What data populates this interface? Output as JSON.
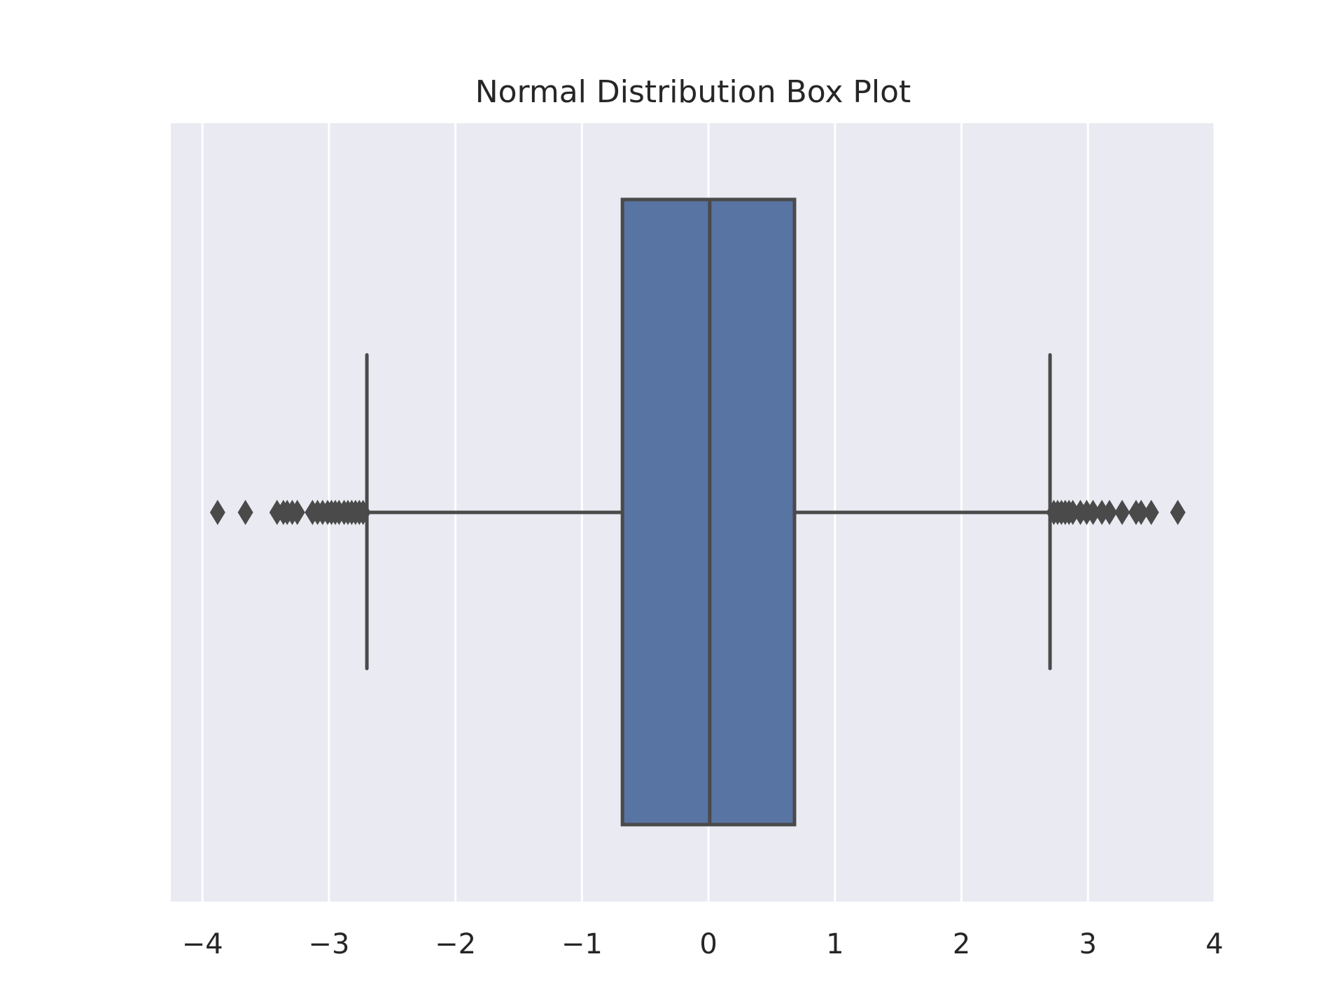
{
  "chart_data": {
    "type": "box",
    "title": "Normal Distribution Box Plot",
    "xlabel": "",
    "ylabel": "",
    "xlim": [
      -4.25,
      4.0
    ],
    "xticks": [
      -4,
      -3,
      -2,
      -1,
      0,
      1,
      2,
      3,
      4
    ],
    "xtick_labels": [
      "−4",
      "−3",
      "−2",
      "−1",
      "0",
      "1",
      "2",
      "3",
      "4"
    ],
    "grid": true,
    "orientation": "horizontal",
    "colors": {
      "box_fill": "#5874a3",
      "line": "#4a4a4a",
      "plot_background": "#eaeaf2",
      "grid": "#ffffff"
    },
    "box": {
      "whisker_low": -2.7,
      "q1": -0.68,
      "median": 0.01,
      "q3": 0.68,
      "whisker_high": 2.7
    },
    "outliers": [
      -3.88,
      -3.66,
      -3.41,
      -3.36,
      -3.33,
      -3.29,
      -3.25,
      -3.13,
      -3.09,
      -3.05,
      -3.01,
      -2.98,
      -2.95,
      -2.92,
      -2.88,
      -2.85,
      -2.82,
      -2.79,
      -2.76,
      -2.73,
      2.73,
      2.76,
      2.79,
      2.82,
      2.85,
      2.88,
      2.94,
      2.99,
      3.04,
      3.11,
      3.17,
      3.27,
      3.38,
      3.42,
      3.5,
      3.71
    ]
  }
}
